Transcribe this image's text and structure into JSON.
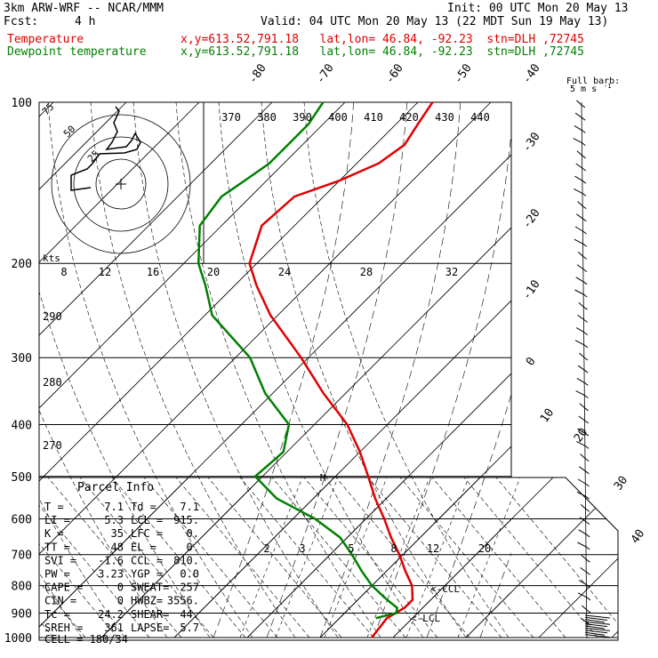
{
  "header": {
    "title": "3km ARW-WRF -- NCAR/MMM",
    "init": "Init: 00 UTC Mon 20 May 13",
    "fcst_label": "Fcst:",
    "fcst_value": "4 h",
    "valid": "Valid: 04 UTC Mon 20 May 13 (22 MDT Sun 19 May 13)"
  },
  "legend": [
    {
      "name": "Temperature",
      "info": "x,y=613.52,791.18   lat,lon= 46.84, -92.23  stn=DLH ,72745",
      "color": "#e00000"
    },
    {
      "name": "Dewpoint temperature",
      "info": "x,y=613.52,791.18   lat,lon= 46.84, -92.23  stn=DLH ,72745",
      "color": "#008000"
    }
  ],
  "wind_key": {
    "label": "Full barb:",
    "value": "5 m s",
    "unit_sup": "-1"
  },
  "hodograph": {
    "ring_labels": [
      "75",
      "50",
      "25"
    ],
    "kts_label": "kts"
  },
  "parcel_info": {
    "title": "Parcel Info",
    "rows": [
      [
        "T  =",
        "7.1",
        "Td =",
        "7.1"
      ],
      [
        "LI =",
        "5.3",
        "LCL =",
        "915."
      ],
      [
        "K  =",
        "35",
        "LFC =",
        "0."
      ],
      [
        "TT =",
        "48",
        "EL  =",
        "0."
      ],
      [
        "SVI =",
        "-1.6",
        "CCL =",
        "810."
      ],
      [
        "PW =",
        "3.23",
        "YGP =",
        "0.0"
      ],
      [
        "CAPE =",
        "0",
        "SWEAT=",
        "257"
      ],
      [
        "CIN =",
        "0",
        "HWBZ=",
        "3556."
      ],
      [
        "Tc =",
        "24.2",
        "SHEAR=",
        "44."
      ],
      [
        "SREH =",
        "361",
        "LAPSE=",
        "5.7"
      ]
    ],
    "cell": "CELL = 180/34"
  },
  "chart_data": {
    "type": "line",
    "title": "",
    "xlabel": "Temperature",
    "ylabel": "Pressure",
    "pressure_ticks": [
      100,
      200,
      300,
      400,
      500,
      600,
      700,
      800,
      900,
      1000
    ],
    "isotherm_labels": [
      "-80",
      "-70",
      "-60",
      "-50",
      "-40",
      "-30",
      "-20",
      "-10",
      "0",
      "10",
      "20",
      "30",
      "40"
    ],
    "theta_labels": [
      "370",
      "380",
      "390",
      "400",
      "410",
      "420",
      "430",
      "440"
    ],
    "theta_side_labels": [
      "290",
      "280",
      "270"
    ],
    "mixing_ratio_labels": [
      "2",
      "3",
      "5",
      "8",
      "12",
      "20"
    ],
    "shear_axis_labels": [
      "8",
      "12",
      "16",
      "20",
      "24",
      "28",
      "32"
    ],
    "ccl_label": "<-CCL",
    "lcl_label": "<-LCL",
    "series": [
      {
        "name": "Temperature",
        "color": "#e00000",
        "pressure": [
          1000,
          920,
          900,
          880,
          850,
          800,
          750,
          700,
          650,
          600,
          550,
          500,
          450,
          400,
          350,
          300,
          250,
          220,
          200,
          170,
          150,
          140,
          130,
          120,
          110,
          100
        ],
        "values": [
          7.1,
          6.5,
          7.0,
          7.5,
          7.5,
          5.5,
          2.5,
          -0.5,
          -4.0,
          -7.5,
          -11.5,
          -15.5,
          -20.0,
          -25.5,
          -33.0,
          -41.0,
          -51.0,
          -57.0,
          -61.0,
          -64.5,
          -64.0,
          -60.0,
          -57.0,
          -56.0,
          -57.0,
          -58.0
        ]
      },
      {
        "name": "Dewpoint temperature",
        "color": "#008000",
        "pressure": [
          920,
          910,
          900,
          880,
          850,
          800,
          750,
          700,
          650,
          600,
          550,
          500,
          450,
          400,
          350,
          300,
          250,
          220,
          200,
          170,
          150,
          140,
          130,
          120,
          110,
          100
        ],
        "values": [
          5.0,
          6.0,
          7.1,
          6.5,
          4.0,
          0.0,
          -3.5,
          -7.0,
          -11.0,
          -17.0,
          -25.0,
          -31.0,
          -30.5,
          -33.5,
          -41.0,
          -48.0,
          -59.0,
          -64.0,
          -68.0,
          -73.0,
          -74.0,
          -73.0,
          -72.0,
          -72.0,
          -72.0,
          -73.0
        ]
      }
    ]
  }
}
